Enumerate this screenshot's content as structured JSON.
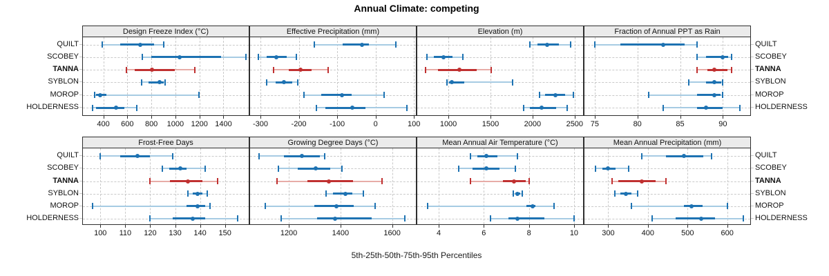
{
  "title": "Annual Climate: competing",
  "xlabel": "5th-25th-50th-75th-95th Percentiles",
  "sites": [
    "QUILT",
    "SCOBEY",
    "TANNA",
    "SYBLON",
    "MOROP",
    "HOLDERNESS"
  ],
  "highlight_site": "TANNA",
  "colors": {
    "series": "#1d72b2",
    "series_light": "#a6cbe3",
    "highlight": "#c03030",
    "highlight_light": "#e7aca7",
    "strip_bg": "#ebebeb",
    "border": "#2e2e2e",
    "grid": "#c9c9c9"
  },
  "chart_data": {
    "type": "percentile-dotplot",
    "title": "Annual Climate: competing",
    "xlabel": "5th-25th-50th-75th-95th Percentiles",
    "percentile_levels": [
      5,
      25,
      50,
      75,
      95
    ],
    "categories": [
      "QUILT",
      "SCOBEY",
      "TANNA",
      "SYBLON",
      "MOROP",
      "HOLDERNESS"
    ],
    "legend": "none",
    "grid": "dashed",
    "layout": {
      "rows": 2,
      "cols": 4
    },
    "panels": [
      {
        "title": "Design Freeze Index (°C)",
        "row": 0,
        "col": 0,
        "xlim": [
          230,
          1610
        ],
        "ticks": [
          400,
          600,
          800,
          1000,
          1200,
          1400
        ],
        "series": [
          {
            "site": "QUILT",
            "values": [
              390,
              540,
              710,
              820,
              900
            ]
          },
          {
            "site": "SCOBEY",
            "values": [
              725,
              800,
              1035,
              1380,
              1585
            ]
          },
          {
            "site": "TANNA",
            "values": [
              595,
              660,
              805,
              995,
              1160
            ]
          },
          {
            "site": "SYBLON",
            "values": [
              720,
              775,
              870,
              900,
              915
            ]
          },
          {
            "site": "MOROP",
            "values": [
              330,
              340,
              375,
              425,
              1195
            ]
          },
          {
            "site": "HOLDERNESS",
            "values": [
              310,
              340,
              505,
              575,
              680
            ]
          }
        ]
      },
      {
        "title": "Effective Precipitation (mm)",
        "row": 0,
        "col": 1,
        "xlim": [
          -327,
          105
        ],
        "ticks": [
          -300,
          -200,
          -100,
          0,
          100
        ],
        "series": [
          {
            "site": "QUILT",
            "values": [
              -160,
              -85,
              -35,
              -18,
              52
            ]
          },
          {
            "site": "SCOBEY",
            "values": [
              -305,
              -283,
              -258,
              -232,
              -207
            ]
          },
          {
            "site": "TANNA",
            "values": [
              -265,
              -227,
              -195,
              -166,
              -123
            ]
          },
          {
            "site": "SYBLON",
            "values": [
              -283,
              -260,
              -239,
              -218,
              -202
            ]
          },
          {
            "site": "MOROP",
            "values": [
              -186,
              -142,
              -88,
              -62,
              22
            ]
          },
          {
            "site": "HOLDERNESS",
            "values": [
              -155,
              -130,
              -60,
              -27,
              81
            ]
          }
        ]
      },
      {
        "title": "Elevation (m)",
        "row": 0,
        "col": 2,
        "xlim": [
          630,
          2600
        ],
        "ticks": [
          1000,
          1500,
          2000,
          2500
        ],
        "series": [
          {
            "site": "QUILT",
            "values": [
              1970,
              2060,
              2170,
              2310,
              2450
            ]
          },
          {
            "site": "SCOBEY",
            "values": [
              745,
              830,
              940,
              1045,
              1170
            ]
          },
          {
            "site": "TANNA",
            "values": [
              730,
              875,
              1130,
              1340,
              1505
            ]
          },
          {
            "site": "SYBLON",
            "values": [
              985,
              1005,
              1040,
              1185,
              1765
            ]
          },
          {
            "site": "MOROP",
            "values": [
              2080,
              2145,
              2270,
              2390,
              2485
            ]
          },
          {
            "site": "HOLDERNESS",
            "values": [
              1895,
              1970,
              2110,
              2280,
              2410
            ]
          }
        ]
      },
      {
        "title": "Fraction of Annual PPT as Rain",
        "row": 0,
        "col": 3,
        "xlim": [
          73.8,
          93.2
        ],
        "ticks": [
          75,
          80,
          85,
          90
        ],
        "series": [
          {
            "site": "QUILT",
            "values": [
              75,
              78,
              83,
              85.5,
              87
            ]
          },
          {
            "site": "SCOBEY",
            "values": [
              87,
              88,
              90,
              90.6,
              91
            ]
          },
          {
            "site": "TANNA",
            "values": [
              87,
              88.2,
              89,
              90.5,
              91
            ]
          },
          {
            "site": "SYBLON",
            "values": [
              86,
              88,
              89,
              89.8,
              90
            ]
          },
          {
            "site": "MOROP",
            "values": [
              81.3,
              87,
              89,
              89.7,
              90
            ]
          },
          {
            "site": "HOLDERNESS",
            "values": [
              83,
              87,
              88,
              90,
              92
            ]
          }
        ]
      },
      {
        "title": "Frost-Free Days",
        "row": 1,
        "col": 0,
        "xlim": [
          93,
          159.5
        ],
        "ticks": [
          100,
          110,
          120,
          130,
          140,
          150
        ],
        "series": [
          {
            "site": "QUILT",
            "values": [
              100,
              108,
              115,
              120,
              129
            ]
          },
          {
            "site": "SCOBEY",
            "values": [
              125,
              127.5,
              132,
              134.5,
              142
            ]
          },
          {
            "site": "TANNA",
            "values": [
              120,
              128,
              135,
              141,
              147
            ]
          },
          {
            "site": "SYBLON",
            "values": [
              135,
              137,
              139,
              141,
              143
            ]
          },
          {
            "site": "MOROP",
            "values": [
              97,
              134.5,
              139,
              142,
              144
            ]
          },
          {
            "site": "HOLDERNESS",
            "values": [
              120,
              129,
              137,
              142,
              155
            ]
          }
        ]
      },
      {
        "title": "Growing Degree Days (°C)",
        "row": 1,
        "col": 1,
        "xlim": [
          1050,
          1692
        ],
        "ticks": [
          1200,
          1400,
          1600
        ],
        "series": [
          {
            "site": "QUILT",
            "values": [
              1085,
              1180,
              1250,
              1320,
              1340
            ]
          },
          {
            "site": "SCOBEY",
            "values": [
              1160,
              1235,
              1305,
              1360,
              1405
            ]
          },
          {
            "site": "TANNA",
            "values": [
              1155,
              1273,
              1356,
              1448,
              1560
            ]
          },
          {
            "site": "SYBLON",
            "values": [
              1345,
              1370,
              1420,
              1445,
              1490
            ]
          },
          {
            "site": "MOROP",
            "values": [
              1110,
              1300,
              1385,
              1450,
              1535
            ]
          },
          {
            "site": "HOLDERNESS",
            "values": [
              1170,
              1310,
              1380,
              1520,
              1650
            ]
          }
        ]
      },
      {
        "title": "Mean Annual Air Temperature (°C)",
        "row": 1,
        "col": 2,
        "xlim": [
          3.05,
          10.4
        ],
        "ticks": [
          4,
          6,
          8,
          10
        ],
        "series": [
          {
            "site": "QUILT",
            "values": [
              5.4,
              5.7,
              6.1,
              6.6,
              7.5
            ]
          },
          {
            "site": "SCOBEY",
            "values": [
              4.9,
              5.5,
              6.1,
              6.7,
              7.4
            ]
          },
          {
            "site": "TANNA",
            "values": [
              5.4,
              6.85,
              7.35,
              7.85,
              8.0
            ]
          },
          {
            "site": "SYBLON",
            "values": [
              7.3,
              7.4,
              7.5,
              7.6,
              7.7
            ]
          },
          {
            "site": "MOROP",
            "values": [
              3.5,
              7.9,
              8.15,
              8.3,
              9.1
            ]
          },
          {
            "site": "HOLDERNESS",
            "values": [
              6.3,
              7.1,
              7.5,
              8.7,
              10.0
            ]
          }
        ]
      },
      {
        "title": "Mean Annual Precipitation (mm)",
        "row": 1,
        "col": 3,
        "xlim": [
          240,
          658
        ],
        "ticks": [
          300,
          400,
          500,
          600
        ],
        "series": [
          {
            "site": "QUILT",
            "values": [
              385,
              445,
              490,
              540,
              560
            ]
          },
          {
            "site": "SCOBEY",
            "values": [
              268,
              285,
              300,
              318,
              352
            ]
          },
          {
            "site": "TANNA",
            "values": [
              310,
              325,
              385,
              420,
              445
            ]
          },
          {
            "site": "SYBLON",
            "values": [
              317,
              330,
              345,
              359,
              374
            ]
          },
          {
            "site": "MOROP",
            "values": [
              358,
              490,
              510,
              537,
              600
            ]
          },
          {
            "site": "HOLDERNESS",
            "values": [
              410,
              470,
              535,
              570,
              640
            ]
          }
        ]
      }
    ]
  }
}
